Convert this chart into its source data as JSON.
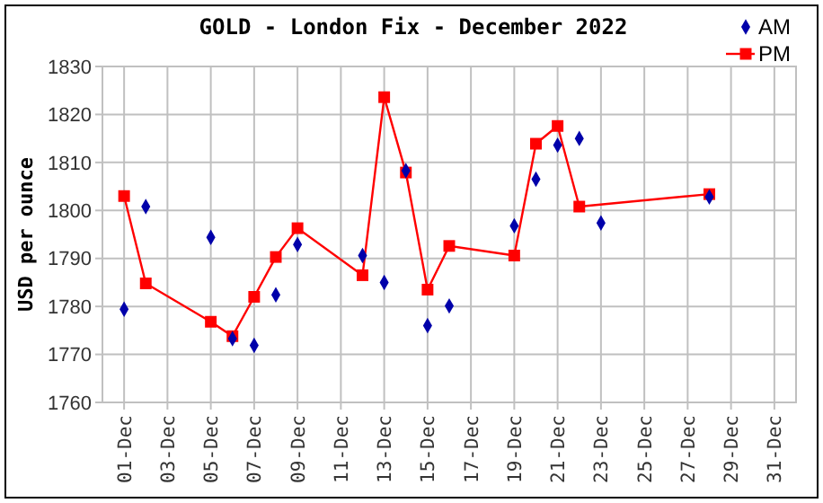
{
  "chart_data": {
    "type": "line",
    "title": "GOLD - London Fix - December 2022",
    "ylabel": "USD per ounce",
    "xlim": [
      "2022-11-30",
      "2023-01-01"
    ],
    "xticks": [
      {
        "value": "2022-12-01",
        "label": "01-Dec"
      },
      {
        "value": "2022-12-03",
        "label": "03-Dec"
      },
      {
        "value": "2022-12-05",
        "label": "05-Dec"
      },
      {
        "value": "2022-12-07",
        "label": "07-Dec"
      },
      {
        "value": "2022-12-09",
        "label": "09-Dec"
      },
      {
        "value": "2022-12-11",
        "label": "11-Dec"
      },
      {
        "value": "2022-12-13",
        "label": "13-Dec"
      },
      {
        "value": "2022-12-15",
        "label": "15-Dec"
      },
      {
        "value": "2022-12-17",
        "label": "17-Dec"
      },
      {
        "value": "2022-12-19",
        "label": "19-Dec"
      },
      {
        "value": "2022-12-21",
        "label": "21-Dec"
      },
      {
        "value": "2022-12-23",
        "label": "23-Dec"
      },
      {
        "value": "2022-12-25",
        "label": "25-Dec"
      },
      {
        "value": "2022-12-27",
        "label": "27-Dec"
      },
      {
        "value": "2022-12-29",
        "label": "29-Dec"
      },
      {
        "value": "2022-12-31",
        "label": "31-Dec"
      }
    ],
    "ylim": [
      1760,
      1830
    ],
    "yticks": [
      1760,
      1770,
      1780,
      1790,
      1800,
      1810,
      1820,
      1830
    ],
    "grid": true,
    "legend": "top right",
    "series": [
      {
        "name": "AM",
        "type": "scatter",
        "marker": "diamond",
        "color": "#0000aa",
        "x": [
          "2022-12-01",
          "2022-12-02",
          "2022-12-05",
          "2022-12-06",
          "2022-12-07",
          "2022-12-08",
          "2022-12-09",
          "2022-12-12",
          "2022-12-13",
          "2022-12-14",
          "2022-12-15",
          "2022-12-16",
          "2022-12-19",
          "2022-12-20",
          "2022-12-21",
          "2022-12-22",
          "2022-12-23",
          "2022-12-28"
        ],
        "values": [
          1779.4,
          1800.8,
          1794.4,
          1773.3,
          1771.9,
          1782.4,
          1792.9,
          1790.6,
          1785.0,
          1808.3,
          1776.0,
          1780.1,
          1796.8,
          1806.5,
          1813.6,
          1815.0,
          1797.4,
          1802.8
        ]
      },
      {
        "name": "PM",
        "marker": "square",
        "line_style": "solid",
        "color": "#ff0000",
        "x": [
          "2022-12-01",
          "2022-12-02",
          "2022-12-05",
          "2022-12-06",
          "2022-12-07",
          "2022-12-08",
          "2022-12-09",
          "2022-12-12",
          "2022-12-13",
          "2022-12-14",
          "2022-12-15",
          "2022-12-16",
          "2022-12-19",
          "2022-12-20",
          "2022-12-21",
          "2022-12-22",
          "2022-12-28"
        ],
        "values": [
          1803.0,
          1784.8,
          1776.8,
          1773.8,
          1782.0,
          1790.3,
          1796.3,
          1786.5,
          1823.6,
          1807.9,
          1783.5,
          1792.6,
          1790.6,
          1813.9,
          1817.6,
          1800.8,
          1803.4
        ]
      }
    ]
  }
}
